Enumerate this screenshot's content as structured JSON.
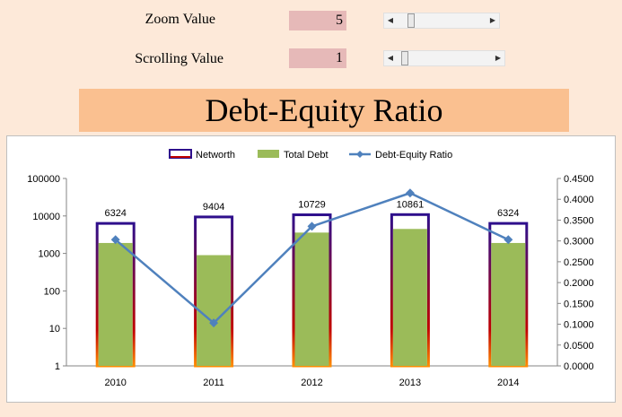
{
  "controls": {
    "zoom": {
      "label": "Zoom Value",
      "value": "5"
    },
    "scroll": {
      "label": "Scrolling Value",
      "value": "1"
    }
  },
  "title": "Debt-Equity Ratio",
  "chart_data": {
    "type": "bar",
    "categories": [
      "2010",
      "2011",
      "2012",
      "2013",
      "2014"
    ],
    "series": [
      {
        "name": "Networth",
        "kind": "bar-outline",
        "values": [
          6324,
          9404,
          10729,
          10861,
          6324
        ],
        "color": "#2e0f8c"
      },
      {
        "name": "Total Debt",
        "kind": "bar",
        "values": [
          1900,
          900,
          3600,
          4500,
          1900
        ],
        "color": "#9bbb59"
      },
      {
        "name": "Debt-Equity Ratio",
        "kind": "line",
        "axis": "right",
        "values": [
          0.303,
          0.103,
          0.335,
          0.415,
          0.303
        ],
        "color": "#4f81bd"
      }
    ],
    "data_labels": [
      "6324",
      "9404",
      "10729",
      "10861",
      "6324"
    ],
    "y_left": {
      "scale": "log",
      "ticks": [
        "1",
        "10",
        "100",
        "1000",
        "10000",
        "100000"
      ],
      "ylim": [
        1,
        100000
      ]
    },
    "y_right": {
      "ticks": [
        "0.0000",
        "0.0500",
        "0.1000",
        "0.1500",
        "0.2000",
        "0.2500",
        "0.3000",
        "0.3500",
        "0.4000",
        "0.4500"
      ],
      "ylim": [
        0,
        0.45
      ]
    },
    "legend_position": "top",
    "grid": false
  }
}
